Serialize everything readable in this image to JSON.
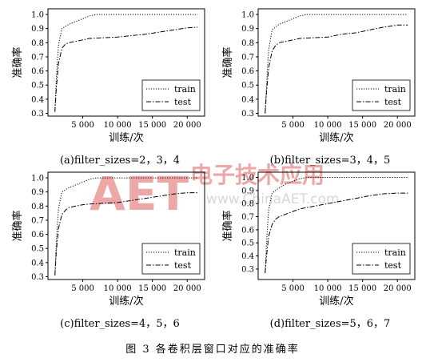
{
  "figure_caption": "图 3  各卷积层窗口对应的准确率",
  "watermark": {
    "logo": "AET",
    "cn": "电子技术应用",
    "url": "www.ChinaAET.com"
  },
  "chart_data": [
    {
      "type": "line",
      "caption": "(a)filter_sizes=2，3，4",
      "xlabel": "训练/次",
      "ylabel": "准确率",
      "xlim": [
        0,
        22500
      ],
      "ylim": [
        0.28,
        1.04
      ],
      "xticks": [
        5000,
        10000,
        15000,
        20000
      ],
      "xtick_labels": [
        "5 000",
        "10 000",
        "15 000",
        "20 000"
      ],
      "yticks": [
        0.3,
        0.4,
        0.5,
        0.6,
        0.7,
        0.8,
        0.9,
        1.0
      ],
      "ytick_labels": [
        "0.3",
        "0.4",
        "0.5",
        "0.6",
        "0.7",
        "0.8",
        "0.9",
        "1.0"
      ],
      "legend": "lower-right",
      "grid": false,
      "series": [
        {
          "name": "train",
          "style": "dotted",
          "x": [
            1000,
            1200,
            1500,
            2000,
            3000,
            4000,
            5000,
            6000,
            7000,
            10000,
            15000,
            20000,
            21500
          ],
          "y": [
            0.32,
            0.55,
            0.78,
            0.9,
            0.93,
            0.95,
            0.97,
            0.99,
            1.0,
            1.0,
            1.0,
            1.0,
            1.0
          ]
        },
        {
          "name": "test",
          "style": "dashdot",
          "x": [
            1000,
            1200,
            1500,
            2000,
            2500,
            3000,
            4000,
            5000,
            6000,
            8000,
            10000,
            12000,
            14000,
            16000,
            18000,
            20000,
            21500
          ],
          "y": [
            0.31,
            0.48,
            0.65,
            0.76,
            0.79,
            0.8,
            0.81,
            0.82,
            0.83,
            0.835,
            0.84,
            0.85,
            0.86,
            0.875,
            0.89,
            0.905,
            0.91
          ]
        }
      ]
    },
    {
      "type": "line",
      "caption": "(b)filter_sizes=3，4，5",
      "xlabel": "训练/次",
      "ylabel": "准确率",
      "xlim": [
        0,
        22500
      ],
      "ylim": [
        0.28,
        1.04
      ],
      "xticks": [
        5000,
        10000,
        15000,
        20000
      ],
      "xtick_labels": [
        "5 000",
        "10 000",
        "15 000",
        "20 000"
      ],
      "yticks": [
        0.3,
        0.4,
        0.5,
        0.6,
        0.7,
        0.8,
        0.9,
        1.0
      ],
      "ytick_labels": [
        "0.3",
        "0.4",
        "0.5",
        "0.6",
        "0.7",
        "0.8",
        "0.9",
        "1.0"
      ],
      "legend": "lower-right",
      "grid": false,
      "series": [
        {
          "name": "train",
          "style": "dotted",
          "x": [
            1000,
            1200,
            1500,
            2000,
            3000,
            4000,
            5000,
            6000,
            7000,
            10000,
            15000,
            20000,
            21500
          ],
          "y": [
            0.3,
            0.5,
            0.75,
            0.89,
            0.93,
            0.95,
            0.97,
            0.99,
            1.0,
            1.0,
            1.0,
            1.0,
            1.0
          ]
        },
        {
          "name": "test",
          "style": "dashdot",
          "x": [
            1000,
            1200,
            1500,
            2000,
            2500,
            3000,
            4000,
            5000,
            6000,
            8000,
            10000,
            12000,
            14000,
            16000,
            18000,
            20000,
            21500
          ],
          "y": [
            0.3,
            0.45,
            0.62,
            0.74,
            0.78,
            0.8,
            0.81,
            0.82,
            0.83,
            0.835,
            0.84,
            0.86,
            0.87,
            0.89,
            0.91,
            0.925,
            0.925
          ]
        }
      ]
    },
    {
      "type": "line",
      "caption": "(c)filter_sizes=4，5，6",
      "xlabel": "训练/次",
      "ylabel": "准确率",
      "xlim": [
        0,
        22500
      ],
      "ylim": [
        0.28,
        1.04
      ],
      "xticks": [
        5000,
        10000,
        15000,
        20000
      ],
      "xtick_labels": [
        "5 000",
        "10 000",
        "15 000",
        "20 000"
      ],
      "yticks": [
        0.3,
        0.4,
        0.5,
        0.6,
        0.7,
        0.8,
        0.9,
        1.0
      ],
      "ytick_labels": [
        "0.3",
        "0.4",
        "0.5",
        "0.6",
        "0.7",
        "0.8",
        "0.9",
        "1.0"
      ],
      "legend": "lower-right",
      "grid": false,
      "series": [
        {
          "name": "train",
          "style": "dotted",
          "x": [
            1000,
            1200,
            1500,
            2000,
            3000,
            4000,
            5000,
            6000,
            7000,
            10000,
            15000,
            20000,
            21500
          ],
          "y": [
            0.31,
            0.55,
            0.78,
            0.9,
            0.93,
            0.95,
            0.97,
            0.99,
            1.0,
            1.0,
            1.0,
            1.0,
            1.0
          ]
        },
        {
          "name": "test",
          "style": "dashdot",
          "x": [
            1000,
            1200,
            1500,
            2000,
            2500,
            3000,
            4000,
            5000,
            6000,
            8000,
            10000,
            12000,
            14000,
            16000,
            18000,
            20000,
            21500
          ],
          "y": [
            0.31,
            0.48,
            0.64,
            0.74,
            0.77,
            0.79,
            0.8,
            0.81,
            0.815,
            0.82,
            0.825,
            0.84,
            0.855,
            0.87,
            0.885,
            0.895,
            0.895
          ]
        }
      ]
    },
    {
      "type": "line",
      "caption": "(d)filter_sizes=5，6，7",
      "xlabel": "训练/次",
      "ylabel": "准确率",
      "xlim": [
        0,
        22500
      ],
      "ylim": [
        0.22,
        1.04
      ],
      "xticks": [
        5000,
        10000,
        15000,
        20000
      ],
      "xtick_labels": [
        "5 000",
        "10 000",
        "15 000",
        "20 000"
      ],
      "yticks": [
        0.3,
        0.4,
        0.5,
        0.6,
        0.7,
        0.8,
        0.9,
        1.0
      ],
      "ytick_labels": [
        "0.3",
        "0.4",
        "0.5",
        "0.6",
        "0.7",
        "0.8",
        "0.9",
        "1.0"
      ],
      "legend": "lower-right",
      "grid": false,
      "series": [
        {
          "name": "train",
          "style": "dotted",
          "x": [
            1000,
            1200,
            1500,
            2000,
            3000,
            4000,
            5000,
            6000,
            7000,
            10000,
            15000,
            20000,
            21500
          ],
          "y": [
            0.27,
            0.5,
            0.75,
            0.88,
            0.92,
            0.95,
            0.97,
            0.99,
            1.0,
            1.0,
            1.0,
            1.0,
            1.0
          ]
        },
        {
          "name": "test",
          "style": "dashdot",
          "x": [
            1000,
            1200,
            1500,
            2000,
            2500,
            3000,
            4000,
            5000,
            6000,
            8000,
            10000,
            12000,
            14000,
            16000,
            18000,
            20000,
            21500
          ],
          "y": [
            0.27,
            0.4,
            0.55,
            0.64,
            0.68,
            0.7,
            0.72,
            0.74,
            0.76,
            0.78,
            0.8,
            0.82,
            0.84,
            0.86,
            0.875,
            0.88,
            0.88
          ]
        }
      ]
    }
  ]
}
